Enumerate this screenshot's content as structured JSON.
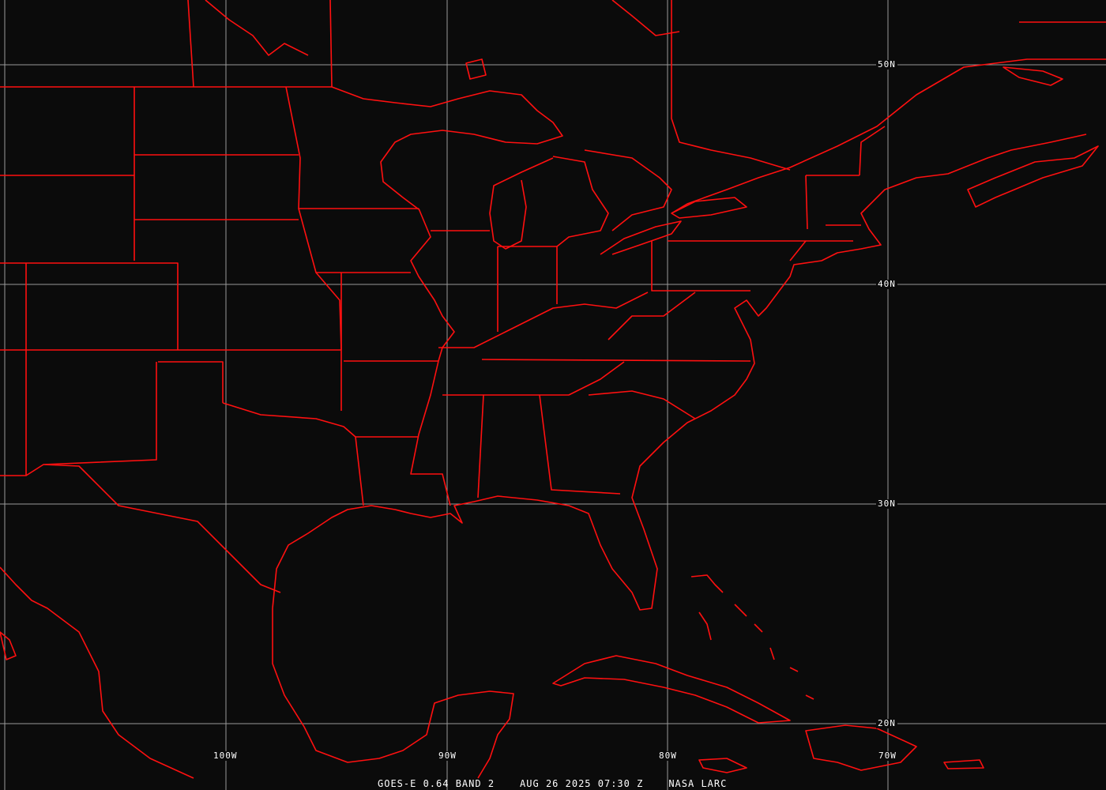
{
  "image": {
    "satellite": "GOES-E 0.64 BAND 2",
    "datetime": "AUG 26 2025 07:30 Z",
    "credit": "NASA LARC"
  },
  "map": {
    "overlay_color": "#ff1010",
    "grid_color": "#9a9a9a",
    "background": "#0b0b0b",
    "latitude_labels": [
      "50N",
      "40N",
      "30N",
      "20N"
    ],
    "longitude_labels": [
      "100W",
      "90W",
      "80W",
      "70W"
    ]
  }
}
